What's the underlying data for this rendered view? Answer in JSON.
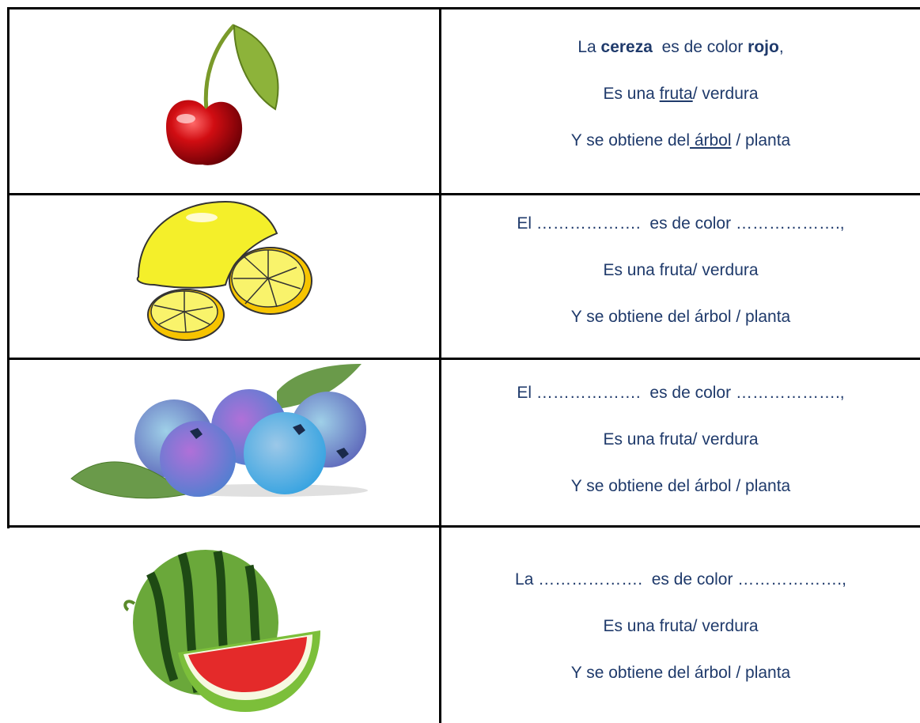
{
  "rows": [
    {
      "lines": [
        [
          "La ",
          {
            "bold": "cereza"
          },
          "  es de color ",
          {
            "bold": "rojo"
          },
          ","
        ],
        [
          "Es una ",
          {
            "underline": "fruta"
          },
          "/ verdura"
        ],
        [
          "Y se obtiene del",
          {
            "underline": " árbol"
          },
          " / planta"
        ]
      ]
    },
    {
      "lines": [
        [
          "El ……………….  es de color ……………….,"
        ],
        [
          "Es una fruta/ verdura"
        ],
        [
          "Y se obtiene del árbol / planta"
        ]
      ]
    },
    {
      "lines": [
        [
          "El ……………….  es de color ……………….,"
        ],
        [
          "Es una fruta/ verdura"
        ],
        [
          "Y se obtiene del árbol / planta"
        ]
      ]
    },
    {
      "lines": [
        [
          "La ……………….  es de color ……………….,"
        ],
        [
          "Es una fruta/ verdura"
        ],
        [
          "Y se obtiene del árbol / planta"
        ]
      ]
    }
  ]
}
